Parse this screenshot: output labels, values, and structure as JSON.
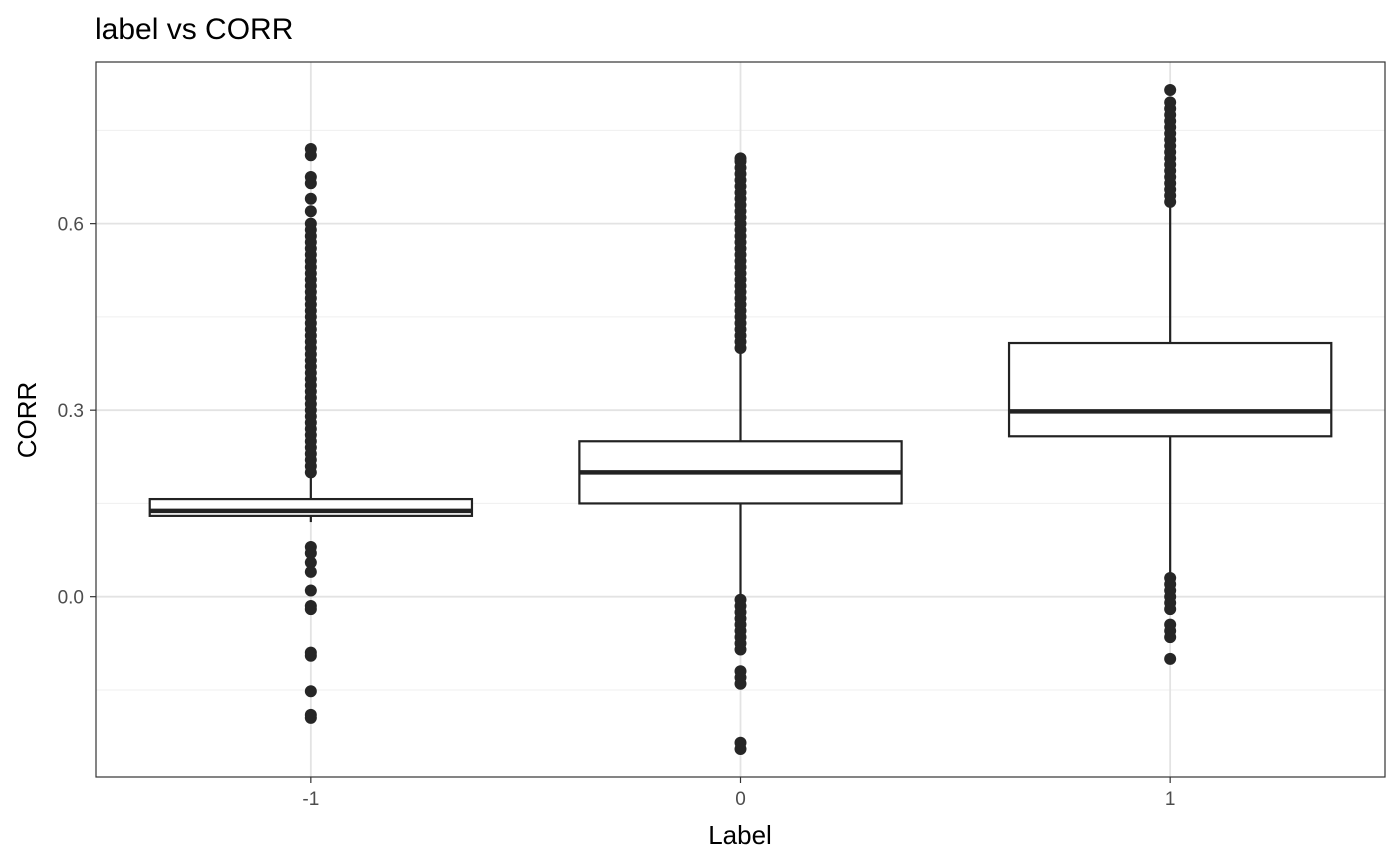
{
  "chart_data": {
    "type": "boxplot",
    "title": "label vs CORR",
    "xlabel": "Label",
    "ylabel": "CORR",
    "ylim": [
      -0.29,
      0.86
    ],
    "y_ticks": [
      0.0,
      0.3,
      0.6
    ],
    "y_tick_labels": [
      "0.0",
      "0.3",
      "0.6"
    ],
    "grid": true,
    "colors": {
      "stroke": "#222222",
      "outlier": "#262626",
      "grid_major": "#e3e3e3",
      "grid_minor": "#efefef",
      "panel_border": "#333333",
      "tick_label": "#4d4d4d"
    },
    "categories": [
      "-1",
      "0",
      "1"
    ],
    "boxes": [
      {
        "label": "-1",
        "whisker_low": 0.12,
        "q1": 0.13,
        "median": 0.138,
        "q3": 0.157,
        "whisker_high": 0.2,
        "outliers": [
          0.2,
          0.21,
          0.22,
          0.23,
          0.24,
          0.25,
          0.26,
          0.27,
          0.28,
          0.29,
          0.3,
          0.31,
          0.32,
          0.33,
          0.34,
          0.35,
          0.36,
          0.37,
          0.38,
          0.39,
          0.4,
          0.41,
          0.42,
          0.43,
          0.44,
          0.45,
          0.46,
          0.47,
          0.48,
          0.49,
          0.5,
          0.51,
          0.52,
          0.53,
          0.54,
          0.55,
          0.56,
          0.57,
          0.58,
          0.59,
          0.6,
          0.62,
          0.64,
          0.665,
          0.675,
          0.71,
          0.72,
          0.08,
          0.07,
          0.055,
          0.04,
          0.01,
          -0.015,
          -0.02,
          -0.09,
          -0.095,
          -0.152,
          -0.19,
          -0.195
        ]
      },
      {
        "label": "0",
        "whisker_low": 0.0,
        "q1": 0.15,
        "median": 0.2,
        "q3": 0.25,
        "whisker_high": 0.4,
        "outliers": [
          0.4,
          0.41,
          0.42,
          0.43,
          0.44,
          0.45,
          0.46,
          0.47,
          0.48,
          0.49,
          0.5,
          0.51,
          0.52,
          0.53,
          0.54,
          0.55,
          0.56,
          0.57,
          0.58,
          0.59,
          0.6,
          0.61,
          0.62,
          0.63,
          0.64,
          0.65,
          0.66,
          0.67,
          0.68,
          0.69,
          0.7,
          0.705,
          -0.005,
          -0.015,
          -0.025,
          -0.035,
          -0.045,
          -0.055,
          -0.065,
          -0.075,
          -0.085,
          -0.12,
          -0.13,
          -0.14,
          -0.235,
          -0.245
        ]
      },
      {
        "label": "1",
        "whisker_low": 0.03,
        "q1": 0.258,
        "median": 0.298,
        "q3": 0.408,
        "whisker_high": 0.635,
        "outliers": [
          0.635,
          0.645,
          0.655,
          0.665,
          0.675,
          0.685,
          0.695,
          0.705,
          0.715,
          0.725,
          0.735,
          0.745,
          0.755,
          0.765,
          0.775,
          0.785,
          0.795,
          0.815,
          0.03,
          0.02,
          0.01,
          0.0,
          -0.01,
          -0.02,
          -0.045,
          -0.055,
          -0.065,
          -0.1
        ]
      }
    ]
  }
}
